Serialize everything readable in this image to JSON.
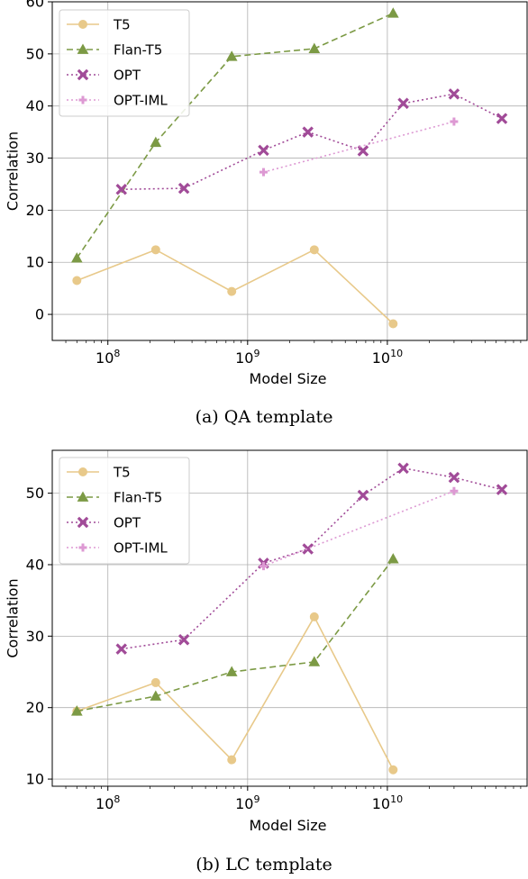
{
  "chart_data": [
    {
      "type": "line",
      "caption": "(a) QA template",
      "xlabel": "Model Size",
      "ylabel": "Correlation",
      "xscale": "log",
      "xlim": [
        40000000,
        100000000000
      ],
      "ylim": [
        -5,
        60
      ],
      "yticks": [
        0,
        10,
        20,
        30,
        40,
        50,
        60
      ],
      "xticks": [
        {
          "value": 100000000,
          "base": "10",
          "exp": "8"
        },
        {
          "value": 1000000000,
          "base": "10",
          "exp": "9"
        },
        {
          "value": 10000000000,
          "base": "10",
          "exp": "10"
        }
      ],
      "grid": true,
      "legend_position": "top-left",
      "series": [
        {
          "name": "T5",
          "color": "#e8c98a",
          "marker": "circle",
          "dash": "",
          "x": [
            60000000,
            220000000,
            770000000,
            3000000000,
            11000000000
          ],
          "y": [
            6.5,
            12.4,
            4.4,
            12.4,
            -1.8
          ]
        },
        {
          "name": "Flan-T5",
          "color": "#7c9a45",
          "marker": "triangle",
          "dash": "7,4",
          "x": [
            60000000,
            220000000,
            770000000,
            3000000000,
            11000000000
          ],
          "y": [
            10.8,
            33.0,
            49.5,
            51.0,
            57.8
          ]
        },
        {
          "name": "OPT",
          "color": "#a14b98",
          "marker": "x",
          "dash": "2,3",
          "x": [
            125000000,
            350000000,
            1300000000,
            2700000000,
            6700000000,
            13000000000,
            30000000000,
            66000000000
          ],
          "y": [
            24.0,
            24.2,
            31.5,
            35.0,
            31.4,
            40.5,
            42.3,
            37.6
          ]
        },
        {
          "name": "OPT-IML",
          "color": "#dd99d3",
          "marker": "plus",
          "dash": "2,3",
          "x": [
            1300000000,
            30000000000
          ],
          "y": [
            27.3,
            37.0
          ]
        }
      ]
    },
    {
      "type": "line",
      "caption": "(b) LC template",
      "xlabel": "Model Size",
      "ylabel": "Correlation",
      "xscale": "log",
      "xlim": [
        40000000,
        100000000000
      ],
      "ylim": [
        9,
        56
      ],
      "yticks": [
        10,
        20,
        30,
        40,
        50
      ],
      "xticks": [
        {
          "value": 100000000,
          "base": "10",
          "exp": "8"
        },
        {
          "value": 1000000000,
          "base": "10",
          "exp": "9"
        },
        {
          "value": 10000000000,
          "base": "10",
          "exp": "10"
        }
      ],
      "grid": true,
      "legend_position": "top-left",
      "series": [
        {
          "name": "T5",
          "color": "#e8c98a",
          "marker": "circle",
          "dash": "",
          "x": [
            60000000,
            220000000,
            770000000,
            3000000000,
            11000000000
          ],
          "y": [
            19.5,
            23.5,
            12.7,
            32.7,
            11.3
          ]
        },
        {
          "name": "Flan-T5",
          "color": "#7c9a45",
          "marker": "triangle",
          "dash": "7,4",
          "x": [
            60000000,
            220000000,
            770000000,
            3000000000,
            11000000000
          ],
          "y": [
            19.5,
            21.6,
            25.0,
            26.4,
            40.8
          ]
        },
        {
          "name": "OPT",
          "color": "#a14b98",
          "marker": "x",
          "dash": "2,3",
          "x": [
            125000000,
            350000000,
            1300000000,
            2700000000,
            6700000000,
            13000000000,
            30000000000,
            66000000000
          ],
          "y": [
            28.2,
            29.5,
            40.2,
            42.2,
            49.7,
            53.5,
            52.2,
            50.5
          ]
        },
        {
          "name": "OPT-IML",
          "color": "#dd99d3",
          "marker": "plus",
          "dash": "2,3",
          "x": [
            1300000000,
            30000000000
          ],
          "y": [
            39.8,
            50.3
          ]
        }
      ]
    }
  ]
}
